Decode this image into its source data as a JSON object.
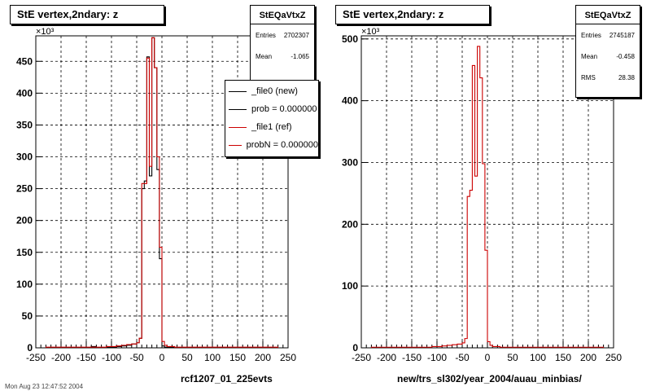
{
  "colors": {
    "file0": "#000000",
    "file1": "#cc0000",
    "grid": "#000000"
  },
  "panels": [
    {
      "title": "StE  vertex,2ndary: z",
      "stats": {
        "name": "StEQaVtxZ",
        "rows": [
          [
            "Entries",
            "2702307"
          ],
          [
            "Mean",
            "-1.065"
          ]
        ]
      },
      "legend": [
        "_file0 (new)",
        "prob = 0.000000",
        "_file1 (ref)",
        "probN = 0.000000"
      ],
      "footer": "rcf1207_01_225evts",
      "exponent": "×10³"
    },
    {
      "title": "StE  vertex,2ndary: z",
      "stats": {
        "name": "StEQaVtxZ",
        "rows": [
          [
            "Entries",
            "2745187"
          ],
          [
            "Mean",
            "-0.458"
          ],
          [
            "RMS",
            "28.38"
          ]
        ]
      },
      "legend": [],
      "footer": "new/trs_sl302/year_2004/auau_minbias/",
      "exponent": "×10³"
    }
  ],
  "timestamp": "Mon Aug 23 12:47:52 2004",
  "chart_data": [
    {
      "type": "line",
      "title": "StE  vertex,2ndary: z",
      "xlabel": "rcf1207_01_225evts",
      "ylabel": "",
      "xlim": [
        -250,
        250
      ],
      "ylim": [
        0,
        490
      ],
      "y_scale_label": "×10³",
      "x_ticks": [
        -250,
        -200,
        -150,
        -100,
        -50,
        0,
        50,
        100,
        150,
        200,
        250
      ],
      "y_ticks": [
        0,
        50,
        100,
        150,
        200,
        250,
        300,
        350,
        400,
        450
      ],
      "grid": true,
      "bin_edges": [
        -230,
        -220,
        -210,
        -200,
        -190,
        -180,
        -170,
        -160,
        -150,
        -140,
        -130,
        -120,
        -110,
        -100,
        -90,
        -80,
        -70,
        -60,
        -50,
        -45,
        -40,
        -35,
        -30,
        -25,
        -20,
        -15,
        -10,
        -5,
        0,
        5,
        10,
        15,
        20,
        25,
        30,
        35,
        40,
        50,
        60,
        70,
        80,
        90,
        100,
        110,
        120,
        130,
        140,
        150,
        160,
        170,
        180,
        190,
        200,
        210,
        220,
        230
      ],
      "series": [
        {
          "name": "_file0 (new)",
          "values": [
            0,
            0,
            0,
            0,
            0,
            0,
            0,
            0,
            0,
            2,
            0,
            0,
            1,
            1,
            2,
            3,
            4,
            6,
            8,
            15,
            250,
            262,
            457,
            270,
            487,
            440,
            280,
            140,
            3,
            1,
            1,
            1,
            1,
            0,
            0,
            0,
            0,
            0,
            0,
            0,
            0,
            0,
            0,
            0,
            0,
            0,
            0,
            0,
            0,
            0,
            0,
            0,
            0,
            0,
            0
          ]
        },
        {
          "name": "_file1 (ref)",
          "values": [
            1,
            1,
            1,
            1,
            1,
            1,
            1,
            1,
            1,
            1,
            1,
            1,
            2,
            2,
            3,
            4,
            5,
            6,
            8,
            15,
            258,
            258,
            455,
            285,
            487,
            440,
            300,
            158,
            10,
            4,
            2,
            2,
            2,
            1,
            1,
            1,
            1,
            1,
            1,
            1,
            1,
            1,
            1,
            1,
            1,
            1,
            1,
            1,
            1,
            1,
            1,
            1,
            1,
            1,
            1
          ]
        }
      ]
    },
    {
      "type": "line",
      "title": "StE  vertex,2ndary: z",
      "xlabel": "new/trs_sl302/year_2004/auau_minbias/",
      "ylabel": "",
      "xlim": [
        -250,
        250
      ],
      "ylim": [
        0,
        505
      ],
      "y_scale_label": "×10³",
      "x_ticks": [
        -250,
        -200,
        -150,
        -100,
        -50,
        0,
        50,
        100,
        150,
        200,
        250
      ],
      "y_ticks": [
        0,
        100,
        200,
        300,
        400,
        500
      ],
      "grid": true,
      "bin_edges": [
        -230,
        -220,
        -210,
        -200,
        -190,
        -180,
        -170,
        -160,
        -150,
        -140,
        -130,
        -120,
        -110,
        -100,
        -90,
        -80,
        -70,
        -60,
        -50,
        -45,
        -40,
        -35,
        -30,
        -25,
        -20,
        -15,
        -10,
        -5,
        0,
        5,
        10,
        15,
        20,
        25,
        30,
        35,
        40,
        50,
        60,
        70,
        80,
        90,
        100,
        110,
        120,
        130,
        140,
        150,
        160,
        170,
        180,
        190,
        200,
        210,
        220,
        230
      ],
      "series": [
        {
          "name": "",
          "values": [
            1,
            1,
            1,
            1,
            1,
            1,
            1,
            1,
            1,
            1,
            1,
            1,
            2,
            2,
            3,
            4,
            5,
            6,
            8,
            15,
            245,
            255,
            457,
            278,
            488,
            437,
            298,
            158,
            10,
            4,
            2,
            2,
            2,
            1,
            1,
            1,
            1,
            1,
            1,
            1,
            1,
            1,
            1,
            1,
            1,
            1,
            1,
            1,
            1,
            1,
            1,
            1,
            1,
            1,
            1
          ]
        }
      ]
    }
  ]
}
